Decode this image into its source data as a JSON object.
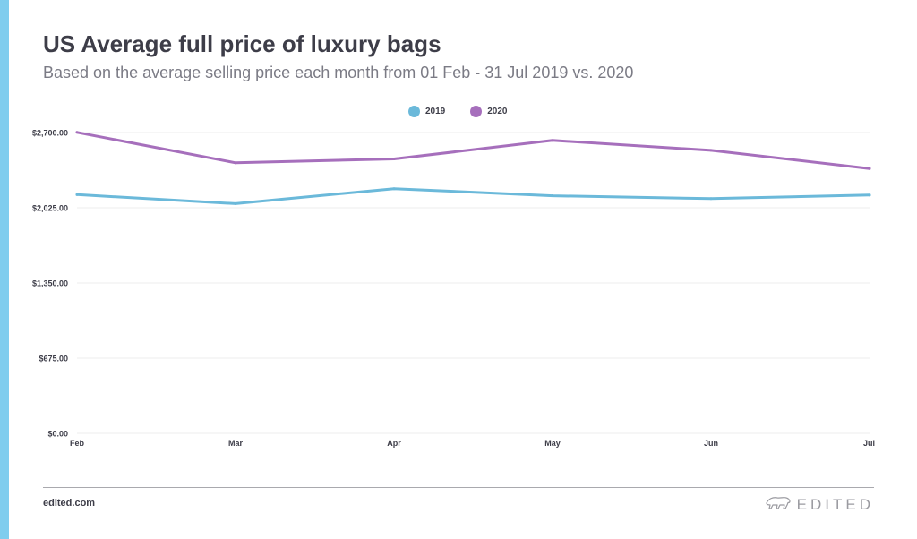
{
  "colors": {
    "accent": "#7fcdee",
    "series_2019": "#6bb9da",
    "series_2020": "#a66fbc",
    "grid": "#ececee",
    "axis_text": "#3d3d48"
  },
  "footer": {
    "link": "edited.com",
    "brand": "EDITED",
    "brand_icon": "polar-bear-icon"
  },
  "chart_data": {
    "type": "line",
    "title": "US Average full price of luxury bags",
    "subtitle": "Based on the average selling price each month from 01 Feb - 31 Jul 2019 vs. 2020",
    "categories": [
      "Feb",
      "Mar",
      "Apr",
      "May",
      "Jun",
      "Jul"
    ],
    "series": [
      {
        "name": "2019",
        "values": [
          2143,
          2062,
          2196,
          2133,
          2107,
          2139
        ]
      },
      {
        "name": "2020",
        "values": [
          2702,
          2428,
          2463,
          2629,
          2540,
          2377
        ]
      }
    ],
    "ylim": [
      0,
      2700
    ],
    "yticks": [
      0,
      675,
      1350,
      2025,
      2700
    ],
    "ytick_labels": [
      "$0.00",
      "$675.00",
      "$1,350.00",
      "$2,025.00",
      "$2,700.00"
    ],
    "xlabel": "",
    "ylabel": "",
    "grid": true,
    "legend_position": "top-center"
  }
}
